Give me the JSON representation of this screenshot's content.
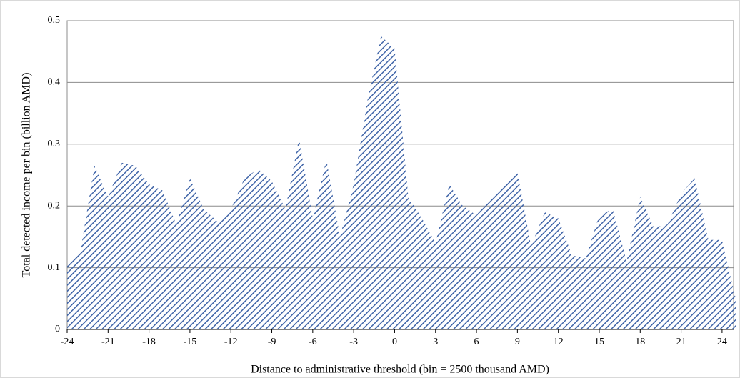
{
  "chart_data": {
    "type": "area",
    "x_label": "Distance to administrative threshold (bin = 2500 thousand AMD)",
    "y_label": "Total detected income per bin (billion AMD)",
    "x": [
      -24,
      -23,
      -22,
      -21,
      -20,
      -19,
      -18,
      -17,
      -16,
      -15,
      -14,
      -13,
      -12,
      -11,
      -10,
      -9,
      -8,
      -7,
      -6,
      -5,
      -4,
      -3,
      -2,
      -1,
      0,
      1,
      2,
      3,
      4,
      5,
      6,
      7,
      8,
      9,
      10,
      11,
      12,
      13,
      14,
      15,
      16,
      17,
      18,
      19,
      20,
      21,
      22,
      23,
      24,
      25
    ],
    "values": [
      0.105,
      0.13,
      0.265,
      0.215,
      0.27,
      0.265,
      0.235,
      0.225,
      0.17,
      0.245,
      0.195,
      0.175,
      0.195,
      0.245,
      0.26,
      0.24,
      0.195,
      0.31,
      0.18,
      0.275,
      0.15,
      0.235,
      0.37,
      0.475,
      0.455,
      0.215,
      0.18,
      0.14,
      0.235,
      0.2,
      0.185,
      0.215,
      0.235,
      0.255,
      0.135,
      0.19,
      0.18,
      0.12,
      0.115,
      0.185,
      0.195,
      0.11,
      0.215,
      0.165,
      0.17,
      0.22,
      0.245,
      0.145,
      0.145,
      0.05
    ],
    "color": "#3f64a8",
    "xlim": [
      -24,
      25
    ],
    "xticks": [
      -24,
      -21,
      -18,
      -15,
      -12,
      -9,
      -6,
      -3,
      0,
      3,
      6,
      9,
      12,
      15,
      18,
      21,
      24
    ],
    "ylim": [
      0,
      0.5
    ],
    "yticks": [
      0,
      0.1,
      0.2,
      0.3,
      0.4,
      0.5
    ],
    "grid": true
  }
}
